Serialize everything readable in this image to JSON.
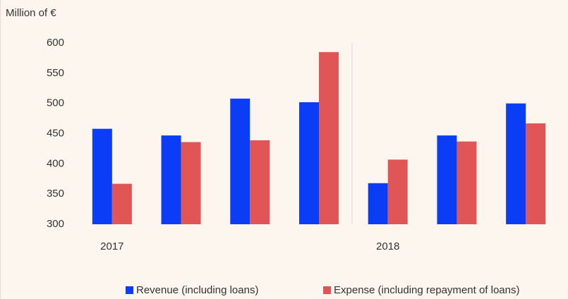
{
  "chart_data": {
    "type": "bar",
    "title": "Million of €",
    "categories": [
      "2017",
      null,
      null,
      null,
      "2018",
      null,
      null
    ],
    "series": [
      {
        "name": "Revenue (including loans)",
        "color": "#0b3df4",
        "values": [
          458,
          447,
          508,
          502,
          368,
          447,
          500
        ]
      },
      {
        "name": "Expense (including repayment of loans)",
        "color": "#e05656",
        "values": [
          367,
          436,
          439,
          585,
          407,
          437,
          467
        ]
      }
    ],
    "ylim": [
      300,
      600
    ],
    "yticks": [
      300,
      350,
      400,
      450,
      500,
      550,
      600
    ],
    "grid": false,
    "legend": "bottom"
  }
}
